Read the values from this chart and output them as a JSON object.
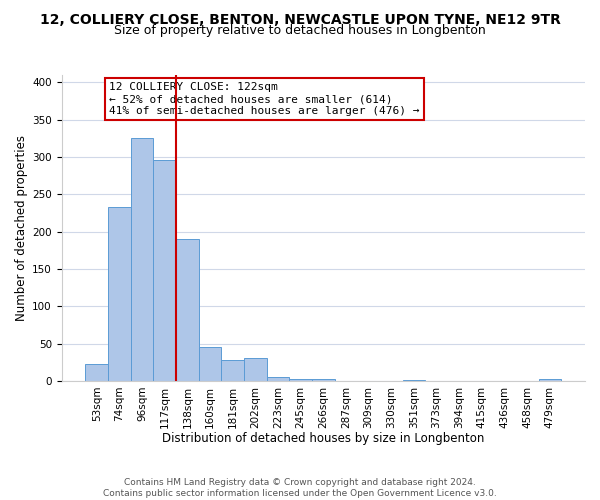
{
  "title": "12, COLLIERY CLOSE, BENTON, NEWCASTLE UPON TYNE, NE12 9TR",
  "subtitle": "Size of property relative to detached houses in Longbenton",
  "xlabel": "Distribution of detached houses by size in Longbenton",
  "ylabel": "Number of detached properties",
  "bar_labels": [
    "53sqm",
    "74sqm",
    "96sqm",
    "117sqm",
    "138sqm",
    "160sqm",
    "181sqm",
    "202sqm",
    "223sqm",
    "245sqm",
    "266sqm",
    "287sqm",
    "309sqm",
    "330sqm",
    "351sqm",
    "373sqm",
    "394sqm",
    "415sqm",
    "436sqm",
    "458sqm",
    "479sqm"
  ],
  "bar_values": [
    23,
    233,
    325,
    296,
    190,
    45,
    28,
    30,
    5,
    2,
    2,
    0,
    0,
    0,
    1,
    0,
    0,
    0,
    0,
    0,
    2
  ],
  "bar_color": "#aec6e8",
  "bar_edge_color": "#5b9bd5",
  "vline_x": 3.5,
  "vline_color": "#cc0000",
  "ylim": [
    0,
    410
  ],
  "yticks": [
    0,
    50,
    100,
    150,
    200,
    250,
    300,
    350,
    400
  ],
  "annotation_box_text": "12 COLLIERY CLOSE: 122sqm\n← 52% of detached houses are smaller (614)\n41% of semi-detached houses are larger (476) →",
  "footer_text": "Contains HM Land Registry data © Crown copyright and database right 2024.\nContains public sector information licensed under the Open Government Licence v3.0.",
  "title_fontsize": 10,
  "subtitle_fontsize": 9,
  "xlabel_fontsize": 8.5,
  "ylabel_fontsize": 8.5,
  "tick_fontsize": 7.5,
  "annotation_fontsize": 8,
  "footer_fontsize": 6.5,
  "background_color": "#ffffff",
  "grid_color": "#d0d8e8"
}
